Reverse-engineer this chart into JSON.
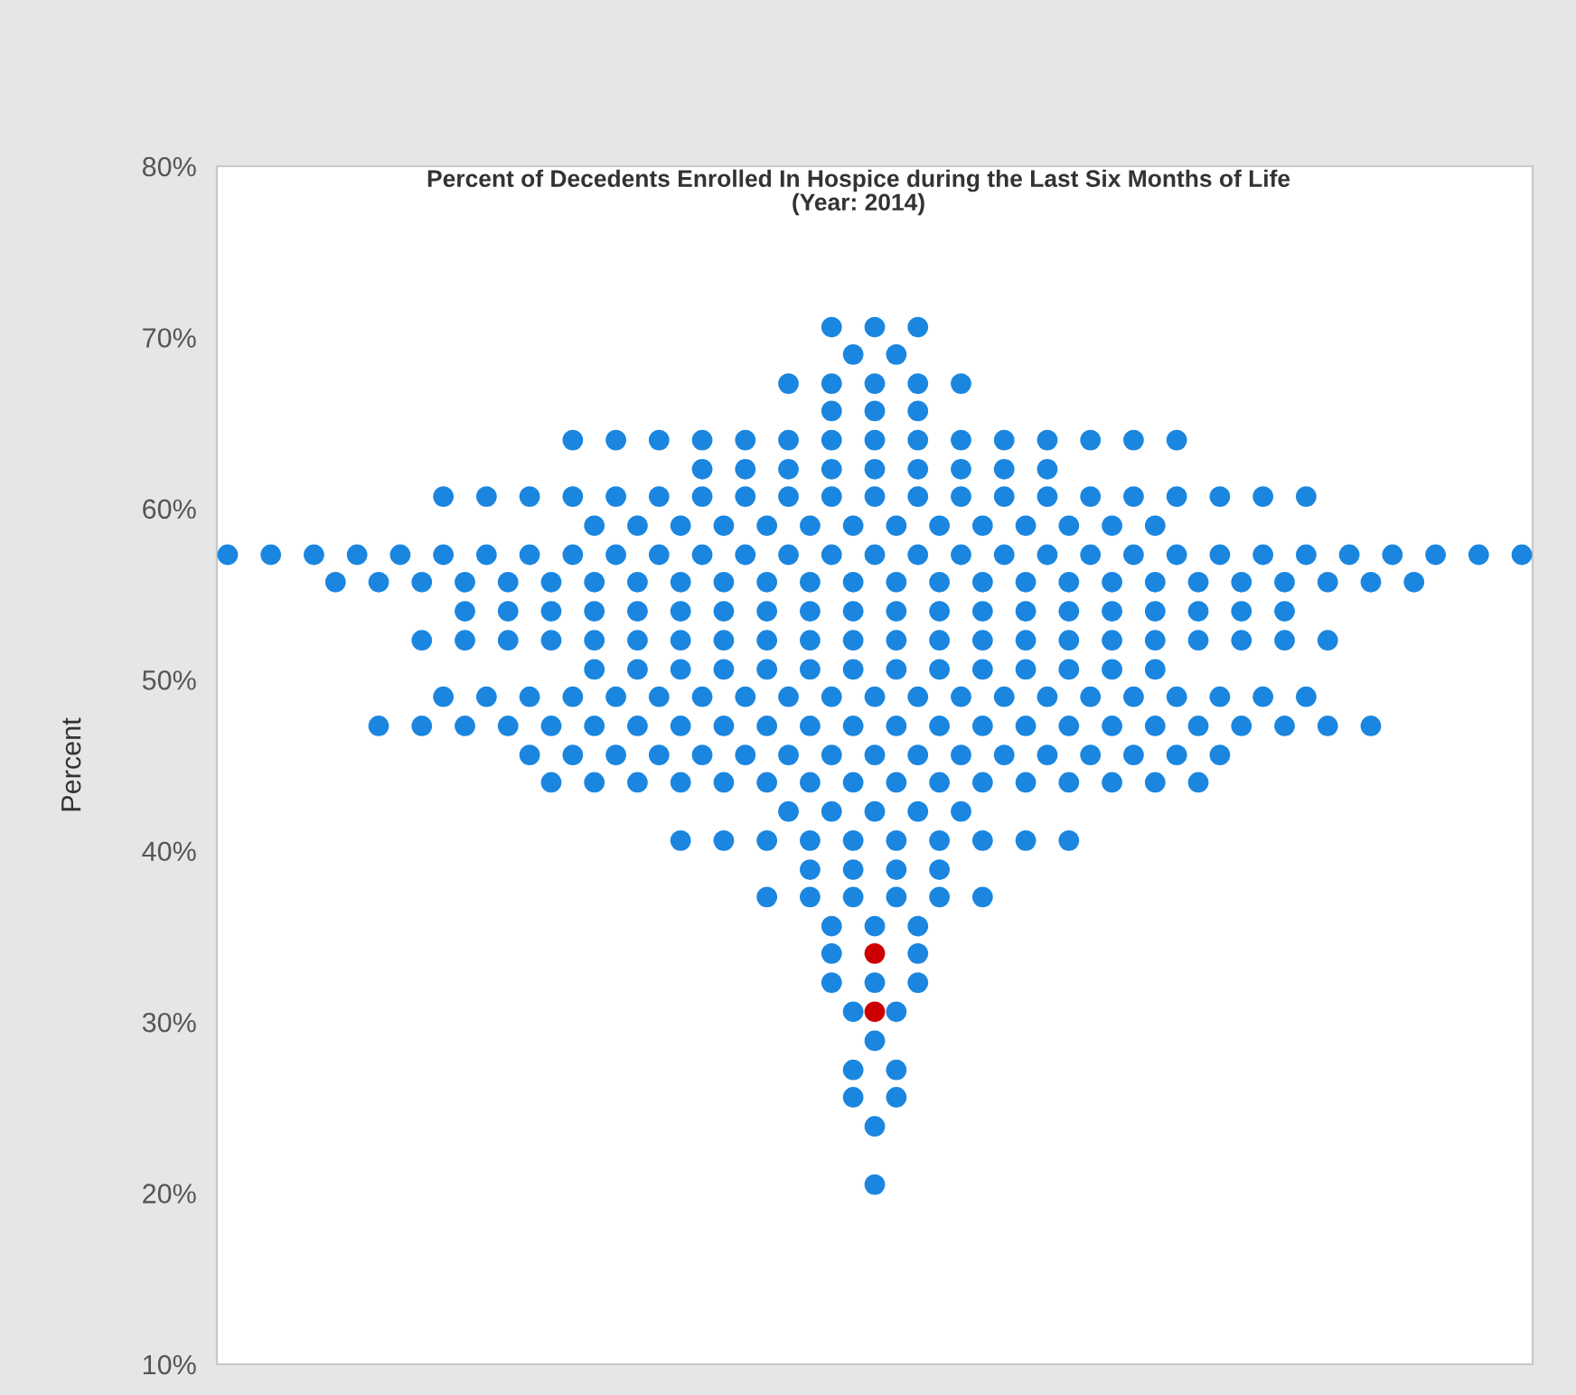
{
  "chart_data": {
    "type": "scatter",
    "title": "Percent of Decedents Enrolled In Hospice during the Last Six Months of Life",
    "subtitle": "(Year: 2014)",
    "ylabel": "Percent",
    "categories": [
      null,
      null,
      null,
      null,
      null,
      null,
      null,
      null,
      null,
      null,
      null,
      null,
      null,
      null,
      null,
      null,
      null,
      null,
      null,
      null,
      null,
      null,
      null,
      null,
      null,
      null,
      null,
      null,
      null,
      null,
      null,
      null,
      null,
      null,
      null,
      null,
      null,
      null,
      null,
      null,
      null,
      null,
      null,
      null,
      null,
      null,
      null,
      null,
      null,
      null,
      null,
      null,
      null,
      null,
      null,
      null,
      null,
      null,
      null,
      null,
      null
    ],
    "ylim": [
      10,
      80
    ],
    "yticks": [
      {
        "value": 10,
        "label": "10%"
      },
      {
        "value": 20,
        "label": "20%"
      },
      {
        "value": 30,
        "label": "30%"
      },
      {
        "value": 40,
        "label": "40%"
      },
      {
        "value": 50,
        "label": "50%"
      },
      {
        "value": 60,
        "label": "60%"
      },
      {
        "value": 70,
        "label": "70%"
      },
      {
        "value": 80,
        "label": "80%"
      }
    ],
    "tick_labels": "y",
    "marker": "circle",
    "series": [
      {
        "color": "#1a86e0",
        "values": [
          null,
          null,
          null,
          null,
          null,
          null,
          null,
          null,
          null,
          null,
          null,
          null,
          null,
          null,
          null,
          null,
          null,
          null,
          null,
          null,
          null,
          null,
          null,
          null,
          null,
          null,
          null,
          null,
          70.6,
          null,
          70.6,
          null,
          70.6,
          null,
          null,
          null,
          null,
          null,
          null,
          null,
          null,
          null,
          null,
          null,
          null,
          null,
          null,
          null,
          null,
          null,
          null,
          null,
          null,
          null,
          null,
          null,
          null,
          null,
          null,
          null,
          null
        ]
      },
      {
        "color": "#1a86e0",
        "values": [
          null,
          null,
          null,
          null,
          null,
          null,
          null,
          null,
          null,
          null,
          null,
          null,
          null,
          null,
          null,
          null,
          null,
          null,
          null,
          null,
          null,
          null,
          null,
          null,
          null,
          null,
          null,
          null,
          null,
          69.0,
          null,
          69.0,
          null,
          null,
          null,
          null,
          null,
          null,
          null,
          null,
          null,
          null,
          null,
          null,
          null,
          null,
          null,
          null,
          null,
          null,
          null,
          null,
          null,
          null,
          null,
          null,
          null,
          null,
          null,
          null,
          null
        ]
      },
      {
        "color": "#1a86e0",
        "values": [
          null,
          null,
          null,
          null,
          null,
          null,
          null,
          null,
          null,
          null,
          null,
          null,
          null,
          null,
          null,
          null,
          null,
          null,
          null,
          null,
          null,
          null,
          null,
          null,
          null,
          null,
          67.3,
          null,
          67.3,
          null,
          67.3,
          null,
          67.3,
          null,
          67.3,
          null,
          null,
          null,
          null,
          null,
          null,
          null,
          null,
          null,
          null,
          null,
          null,
          null,
          null,
          null,
          null,
          null,
          null,
          null,
          null,
          null,
          null,
          null,
          null,
          null,
          null
        ]
      },
      {
        "color": "#1a86e0",
        "values": [
          null,
          null,
          null,
          null,
          null,
          null,
          null,
          null,
          null,
          null,
          null,
          null,
          null,
          null,
          null,
          null,
          null,
          null,
          null,
          null,
          null,
          null,
          null,
          null,
          null,
          null,
          null,
          null,
          65.7,
          null,
          65.7,
          null,
          65.7,
          null,
          null,
          null,
          null,
          null,
          null,
          null,
          null,
          null,
          null,
          null,
          null,
          null,
          null,
          null,
          null,
          null,
          null,
          null,
          null,
          null,
          null,
          null,
          null,
          null,
          null,
          null,
          null
        ]
      },
      {
        "color": "#1a86e0",
        "values": [
          null,
          null,
          null,
          null,
          null,
          null,
          null,
          null,
          null,
          null,
          null,
          null,
          null,
          null,
          null,
          null,
          64.0,
          null,
          64.0,
          null,
          64.0,
          null,
          64.0,
          null,
          64.0,
          null,
          64.0,
          null,
          64.0,
          null,
          64.0,
          null,
          64.0,
          null,
          64.0,
          null,
          64.0,
          null,
          64.0,
          null,
          64.0,
          null,
          64.0,
          null,
          64.0,
          null,
          null,
          null,
          null,
          null,
          null,
          null,
          null,
          null,
          null,
          null,
          null,
          null,
          null,
          null,
          null
        ]
      },
      {
        "color": "#1a86e0",
        "values": [
          null,
          null,
          null,
          null,
          null,
          null,
          null,
          null,
          null,
          null,
          null,
          null,
          null,
          null,
          null,
          null,
          null,
          null,
          null,
          null,
          null,
          null,
          62.3,
          null,
          62.3,
          null,
          62.3,
          null,
          62.3,
          null,
          62.3,
          null,
          62.3,
          null,
          62.3,
          null,
          62.3,
          null,
          62.3,
          null,
          null,
          null,
          null,
          null,
          null,
          null,
          null,
          null,
          null,
          null,
          null,
          null,
          null,
          null,
          null,
          null,
          null,
          null,
          null,
          null,
          null
        ]
      },
      {
        "color": "#1a86e0",
        "values": [
          null,
          null,
          null,
          null,
          null,
          null,
          null,
          null,
          null,
          null,
          60.7,
          null,
          60.7,
          null,
          60.7,
          null,
          60.7,
          null,
          60.7,
          null,
          60.7,
          null,
          60.7,
          null,
          60.7,
          null,
          60.7,
          null,
          60.7,
          null,
          60.7,
          null,
          60.7,
          null,
          60.7,
          null,
          60.7,
          null,
          60.7,
          null,
          60.7,
          null,
          60.7,
          null,
          60.7,
          null,
          60.7,
          null,
          60.7,
          null,
          60.7,
          null,
          null,
          null,
          null,
          null,
          null,
          null,
          null,
          null,
          null
        ]
      },
      {
        "color": "#1a86e0",
        "values": [
          null,
          null,
          null,
          null,
          null,
          null,
          null,
          null,
          null,
          null,
          null,
          null,
          null,
          null,
          null,
          null,
          null,
          59.0,
          null,
          59.0,
          null,
          59.0,
          null,
          59.0,
          null,
          59.0,
          null,
          59.0,
          null,
          59.0,
          null,
          59.0,
          null,
          59.0,
          null,
          59.0,
          null,
          59.0,
          null,
          59.0,
          null,
          59.0,
          null,
          59.0,
          null,
          null,
          null,
          null,
          null,
          null,
          null,
          null,
          null,
          null,
          null,
          null,
          null,
          null,
          null,
          null,
          null
        ]
      },
      {
        "color": "#1a86e0",
        "values": [
          57.3,
          null,
          57.3,
          null,
          57.3,
          null,
          57.3,
          null,
          57.3,
          null,
          57.3,
          null,
          57.3,
          null,
          57.3,
          null,
          57.3,
          null,
          57.3,
          null,
          57.3,
          null,
          57.3,
          null,
          57.3,
          null,
          57.3,
          null,
          57.3,
          null,
          57.3,
          null,
          57.3,
          null,
          57.3,
          null,
          57.3,
          null,
          57.3,
          null,
          57.3,
          null,
          57.3,
          null,
          57.3,
          null,
          57.3,
          null,
          57.3,
          null,
          57.3,
          null,
          57.3,
          null,
          57.3,
          null,
          57.3,
          null,
          57.3,
          null,
          57.3
        ]
      },
      {
        "color": "#1a86e0",
        "values": [
          null,
          null,
          null,
          null,
          null,
          55.7,
          null,
          55.7,
          null,
          55.7,
          null,
          55.7,
          null,
          55.7,
          null,
          55.7,
          null,
          55.7,
          null,
          55.7,
          null,
          55.7,
          null,
          55.7,
          null,
          55.7,
          null,
          55.7,
          null,
          55.7,
          null,
          55.7,
          null,
          55.7,
          null,
          55.7,
          null,
          55.7,
          null,
          55.7,
          null,
          55.7,
          null,
          55.7,
          null,
          55.7,
          null,
          55.7,
          null,
          55.7,
          null,
          55.7,
          null,
          55.7,
          null,
          55.7,
          null,
          null,
          null,
          null,
          null
        ]
      },
      {
        "color": "#1a86e0",
        "values": [
          null,
          null,
          null,
          null,
          null,
          null,
          null,
          null,
          null,
          null,
          null,
          54.0,
          null,
          54.0,
          null,
          54.0,
          null,
          54.0,
          null,
          54.0,
          null,
          54.0,
          null,
          54.0,
          null,
          54.0,
          null,
          54.0,
          null,
          54.0,
          null,
          54.0,
          null,
          54.0,
          null,
          54.0,
          null,
          54.0,
          null,
          54.0,
          null,
          54.0,
          null,
          54.0,
          null,
          54.0,
          null,
          54.0,
          null,
          54.0,
          null,
          null,
          null,
          null,
          null,
          null,
          null,
          null,
          null,
          null,
          null
        ]
      },
      {
        "color": "#1a86e0",
        "values": [
          null,
          null,
          null,
          null,
          null,
          null,
          null,
          null,
          null,
          52.3,
          null,
          52.3,
          null,
          52.3,
          null,
          52.3,
          null,
          52.3,
          null,
          52.3,
          null,
          52.3,
          null,
          52.3,
          null,
          52.3,
          null,
          52.3,
          null,
          52.3,
          null,
          52.3,
          null,
          52.3,
          null,
          52.3,
          null,
          52.3,
          null,
          52.3,
          null,
          52.3,
          null,
          52.3,
          null,
          52.3,
          null,
          52.3,
          null,
          52.3,
          null,
          52.3,
          null,
          null,
          null,
          null,
          null,
          null,
          null,
          null,
          null
        ]
      },
      {
        "color": "#1a86e0",
        "values": [
          null,
          null,
          null,
          null,
          null,
          null,
          null,
          null,
          null,
          null,
          null,
          null,
          null,
          null,
          null,
          null,
          null,
          50.6,
          null,
          50.6,
          null,
          50.6,
          null,
          50.6,
          null,
          50.6,
          null,
          50.6,
          null,
          50.6,
          null,
          50.6,
          null,
          50.6,
          null,
          50.6,
          null,
          50.6,
          null,
          50.6,
          null,
          50.6,
          null,
          50.6,
          null,
          null,
          null,
          null,
          null,
          null,
          null,
          null,
          null,
          null,
          null,
          null,
          null,
          null,
          null,
          null,
          null
        ]
      },
      {
        "color": "#1a86e0",
        "values": [
          null,
          null,
          null,
          null,
          null,
          null,
          null,
          null,
          null,
          null,
          49.0,
          null,
          49.0,
          null,
          49.0,
          null,
          49.0,
          null,
          49.0,
          null,
          49.0,
          null,
          49.0,
          null,
          49.0,
          null,
          49.0,
          null,
          49.0,
          null,
          49.0,
          null,
          49.0,
          null,
          49.0,
          null,
          49.0,
          null,
          49.0,
          null,
          49.0,
          null,
          49.0,
          null,
          49.0,
          null,
          49.0,
          null,
          49.0,
          null,
          49.0,
          null,
          null,
          null,
          null,
          null,
          null,
          null,
          null,
          null,
          null
        ]
      },
      {
        "color": "#1a86e0",
        "values": [
          null,
          null,
          null,
          null,
          null,
          null,
          null,
          47.3,
          null,
          47.3,
          null,
          47.3,
          null,
          47.3,
          null,
          47.3,
          null,
          47.3,
          null,
          47.3,
          null,
          47.3,
          null,
          47.3,
          null,
          47.3,
          null,
          47.3,
          null,
          47.3,
          null,
          47.3,
          null,
          47.3,
          null,
          47.3,
          null,
          47.3,
          null,
          47.3,
          null,
          47.3,
          null,
          47.3,
          null,
          47.3,
          null,
          47.3,
          null,
          47.3,
          null,
          47.3,
          null,
          47.3,
          null,
          null,
          null,
          null,
          null,
          null,
          null
        ]
      },
      {
        "color": "#1a86e0",
        "values": [
          null,
          null,
          null,
          null,
          null,
          null,
          null,
          null,
          null,
          null,
          null,
          null,
          null,
          null,
          45.6,
          null,
          45.6,
          null,
          45.6,
          null,
          45.6,
          null,
          45.6,
          null,
          45.6,
          null,
          45.6,
          null,
          45.6,
          null,
          45.6,
          null,
          45.6,
          null,
          45.6,
          null,
          45.6,
          null,
          45.6,
          null,
          45.6,
          null,
          45.6,
          null,
          45.6,
          null,
          45.6,
          null,
          null,
          null,
          null,
          null,
          null,
          null,
          null,
          null,
          null,
          null,
          null,
          null,
          null
        ]
      },
      {
        "color": "#1a86e0",
        "values": [
          null,
          null,
          null,
          null,
          null,
          null,
          null,
          null,
          null,
          null,
          null,
          null,
          null,
          null,
          null,
          44.0,
          null,
          44.0,
          null,
          44.0,
          null,
          44.0,
          null,
          44.0,
          null,
          44.0,
          null,
          44.0,
          null,
          44.0,
          null,
          44.0,
          null,
          44.0,
          null,
          44.0,
          null,
          44.0,
          null,
          44.0,
          null,
          44.0,
          null,
          44.0,
          null,
          44.0,
          null,
          null,
          null,
          null,
          null,
          null,
          null,
          null,
          null,
          null,
          null,
          null,
          null,
          null,
          null
        ]
      },
      {
        "color": "#1a86e0",
        "values": [
          null,
          null,
          null,
          null,
          null,
          null,
          null,
          null,
          null,
          null,
          null,
          null,
          null,
          null,
          null,
          null,
          null,
          null,
          null,
          null,
          null,
          null,
          null,
          null,
          null,
          null,
          42.3,
          null,
          42.3,
          null,
          42.3,
          null,
          42.3,
          null,
          42.3,
          null,
          null,
          null,
          null,
          null,
          null,
          null,
          null,
          null,
          null,
          null,
          null,
          null,
          null,
          null,
          null,
          null,
          null,
          null,
          null,
          null,
          null,
          null,
          null,
          null,
          null
        ]
      },
      {
        "color": "#1a86e0",
        "values": [
          null,
          null,
          null,
          null,
          null,
          null,
          null,
          null,
          null,
          null,
          null,
          null,
          null,
          null,
          null,
          null,
          null,
          null,
          null,
          null,
          null,
          40.6,
          null,
          40.6,
          null,
          40.6,
          null,
          40.6,
          null,
          40.6,
          null,
          40.6,
          null,
          40.6,
          null,
          40.6,
          null,
          40.6,
          null,
          40.6,
          null,
          null,
          null,
          null,
          null,
          null,
          null,
          null,
          null,
          null,
          null,
          null,
          null,
          null,
          null,
          null,
          null,
          null,
          null,
          null,
          null
        ]
      },
      {
        "color": "#1a86e0",
        "values": [
          null,
          null,
          null,
          null,
          null,
          null,
          null,
          null,
          null,
          null,
          null,
          null,
          null,
          null,
          null,
          null,
          null,
          null,
          null,
          null,
          null,
          null,
          null,
          null,
          null,
          null,
          null,
          38.9,
          null,
          38.9,
          null,
          38.9,
          null,
          38.9,
          null,
          null,
          null,
          null,
          null,
          null,
          null,
          null,
          null,
          null,
          null,
          null,
          null,
          null,
          null,
          null,
          null,
          null,
          null,
          null,
          null,
          null,
          null,
          null,
          null,
          null,
          null
        ]
      },
      {
        "color": "#1a86e0",
        "values": [
          null,
          null,
          null,
          null,
          null,
          null,
          null,
          null,
          null,
          null,
          null,
          null,
          null,
          null,
          null,
          null,
          null,
          null,
          null,
          null,
          null,
          null,
          null,
          null,
          null,
          37.3,
          null,
          37.3,
          null,
          37.3,
          null,
          37.3,
          null,
          37.3,
          null,
          37.3,
          null,
          null,
          null,
          null,
          null,
          null,
          null,
          null,
          null,
          null,
          null,
          null,
          null,
          null,
          null,
          null,
          null,
          null,
          null,
          null,
          null,
          null,
          null,
          null,
          null
        ]
      },
      {
        "color": "#1a86e0",
        "values": [
          null,
          null,
          null,
          null,
          null,
          null,
          null,
          null,
          null,
          null,
          null,
          null,
          null,
          null,
          null,
          null,
          null,
          null,
          null,
          null,
          null,
          null,
          null,
          null,
          null,
          null,
          null,
          null,
          35.6,
          null,
          35.6,
          null,
          35.6,
          null,
          null,
          null,
          null,
          null,
          null,
          null,
          null,
          null,
          null,
          null,
          null,
          null,
          null,
          null,
          null,
          null,
          null,
          null,
          null,
          null,
          null,
          null,
          null,
          null,
          null,
          null,
          null
        ]
      },
      {
        "color": "#1a86e0",
        "values": [
          null,
          null,
          null,
          null,
          null,
          null,
          null,
          null,
          null,
          null,
          null,
          null,
          null,
          null,
          null,
          null,
          null,
          null,
          null,
          null,
          null,
          null,
          null,
          null,
          null,
          null,
          null,
          null,
          34.0,
          null,
          null,
          null,
          34.0,
          null,
          null,
          null,
          null,
          null,
          null,
          null,
          null,
          null,
          null,
          null,
          null,
          null,
          null,
          null,
          null,
          null,
          null,
          null,
          null,
          null,
          null,
          null,
          null,
          null,
          null,
          null,
          null
        ]
      },
      {
        "color": "#1a86e0",
        "values": [
          null,
          null,
          null,
          null,
          null,
          null,
          null,
          null,
          null,
          null,
          null,
          null,
          null,
          null,
          null,
          null,
          null,
          null,
          null,
          null,
          null,
          null,
          null,
          null,
          null,
          null,
          null,
          null,
          32.3,
          null,
          32.3,
          null,
          32.3,
          null,
          null,
          null,
          null,
          null,
          null,
          null,
          null,
          null,
          null,
          null,
          null,
          null,
          null,
          null,
          null,
          null,
          null,
          null,
          null,
          null,
          null,
          null,
          null,
          null,
          null,
          null,
          null
        ]
      },
      {
        "color": "#1a86e0",
        "values": [
          null,
          null,
          null,
          null,
          null,
          null,
          null,
          null,
          null,
          null,
          null,
          null,
          null,
          null,
          null,
          null,
          null,
          null,
          null,
          null,
          null,
          null,
          null,
          null,
          null,
          null,
          null,
          null,
          null,
          30.6,
          null,
          30.6,
          null,
          null,
          null,
          null,
          null,
          null,
          null,
          null,
          null,
          null,
          null,
          null,
          null,
          null,
          null,
          null,
          null,
          null,
          null,
          null,
          null,
          null,
          null,
          null,
          null,
          null,
          null,
          null,
          null
        ]
      },
      {
        "color": "#1a86e0",
        "values": [
          null,
          null,
          null,
          null,
          null,
          null,
          null,
          null,
          null,
          null,
          null,
          null,
          null,
          null,
          null,
          null,
          null,
          null,
          null,
          null,
          null,
          null,
          null,
          null,
          null,
          null,
          null,
          null,
          null,
          null,
          28.9,
          null,
          null,
          null,
          null,
          null,
          null,
          null,
          null,
          null,
          null,
          null,
          null,
          null,
          null,
          null,
          null,
          null,
          null,
          null,
          null,
          null,
          null,
          null,
          null,
          null,
          null,
          null,
          null,
          null,
          null
        ]
      },
      {
        "color": "#1a86e0",
        "values": [
          null,
          null,
          null,
          null,
          null,
          null,
          null,
          null,
          null,
          null,
          null,
          null,
          null,
          null,
          null,
          null,
          null,
          null,
          null,
          null,
          null,
          null,
          null,
          null,
          null,
          null,
          null,
          null,
          null,
          27.2,
          null,
          27.2,
          null,
          null,
          null,
          null,
          null,
          null,
          null,
          null,
          null,
          null,
          null,
          null,
          null,
          null,
          null,
          null,
          null,
          null,
          null,
          null,
          null,
          null,
          null,
          null,
          null,
          null,
          null,
          null,
          null
        ]
      },
      {
        "color": "#1a86e0",
        "values": [
          null,
          null,
          null,
          null,
          null,
          null,
          null,
          null,
          null,
          null,
          null,
          null,
          null,
          null,
          null,
          null,
          null,
          null,
          null,
          null,
          null,
          null,
          null,
          null,
          null,
          null,
          null,
          null,
          null,
          25.6,
          null,
          25.6,
          null,
          null,
          null,
          null,
          null,
          null,
          null,
          null,
          null,
          null,
          null,
          null,
          null,
          null,
          null,
          null,
          null,
          null,
          null,
          null,
          null,
          null,
          null,
          null,
          null,
          null,
          null,
          null,
          null
        ]
      },
      {
        "color": "#1a86e0",
        "values": [
          null,
          null,
          null,
          null,
          null,
          null,
          null,
          null,
          null,
          null,
          null,
          null,
          null,
          null,
          null,
          null,
          null,
          null,
          null,
          null,
          null,
          null,
          null,
          null,
          null,
          null,
          null,
          null,
          null,
          null,
          23.9,
          null,
          null,
          null,
          null,
          null,
          null,
          null,
          null,
          null,
          null,
          null,
          null,
          null,
          null,
          null,
          null,
          null,
          null,
          null,
          null,
          null,
          null,
          null,
          null,
          null,
          null,
          null,
          null,
          null,
          null
        ]
      },
      {
        "color": "#1a86e0",
        "values": [
          null,
          null,
          null,
          null,
          null,
          null,
          null,
          null,
          null,
          null,
          null,
          null,
          null,
          null,
          null,
          null,
          null,
          null,
          null,
          null,
          null,
          null,
          null,
          null,
          null,
          null,
          null,
          null,
          null,
          null,
          20.5,
          null,
          null,
          null,
          null,
          null,
          null,
          null,
          null,
          null,
          null,
          null,
          null,
          null,
          null,
          null,
          null,
          null,
          null,
          null,
          null,
          null,
          null,
          null,
          null,
          null,
          null,
          null,
          null,
          null,
          null
        ]
      },
      {
        "color": "#cc0000",
        "values": [
          null,
          null,
          null,
          null,
          null,
          null,
          null,
          null,
          null,
          null,
          null,
          null,
          null,
          null,
          null,
          null,
          null,
          null,
          null,
          null,
          null,
          null,
          null,
          null,
          null,
          null,
          null,
          null,
          null,
          null,
          34.0,
          null,
          null,
          null,
          null,
          null,
          null,
          null,
          null,
          null,
          null,
          null,
          null,
          null,
          null,
          null,
          null,
          null,
          null,
          null,
          null,
          null,
          null,
          null,
          null,
          null,
          null,
          null,
          null,
          null,
          null
        ]
      },
      {
        "color": "#cc0000",
        "values": [
          null,
          null,
          null,
          null,
          null,
          null,
          null,
          null,
          null,
          null,
          null,
          null,
          null,
          null,
          null,
          null,
          null,
          null,
          null,
          null,
          null,
          null,
          null,
          null,
          null,
          null,
          null,
          null,
          null,
          null,
          30.6,
          null,
          null,
          null,
          null,
          null,
          null,
          null,
          null,
          null,
          null,
          null,
          null,
          null,
          null,
          null,
          null,
          null,
          null,
          null,
          null,
          null,
          null,
          null,
          null,
          null,
          null,
          null,
          null,
          null,
          null
        ]
      }
    ]
  }
}
